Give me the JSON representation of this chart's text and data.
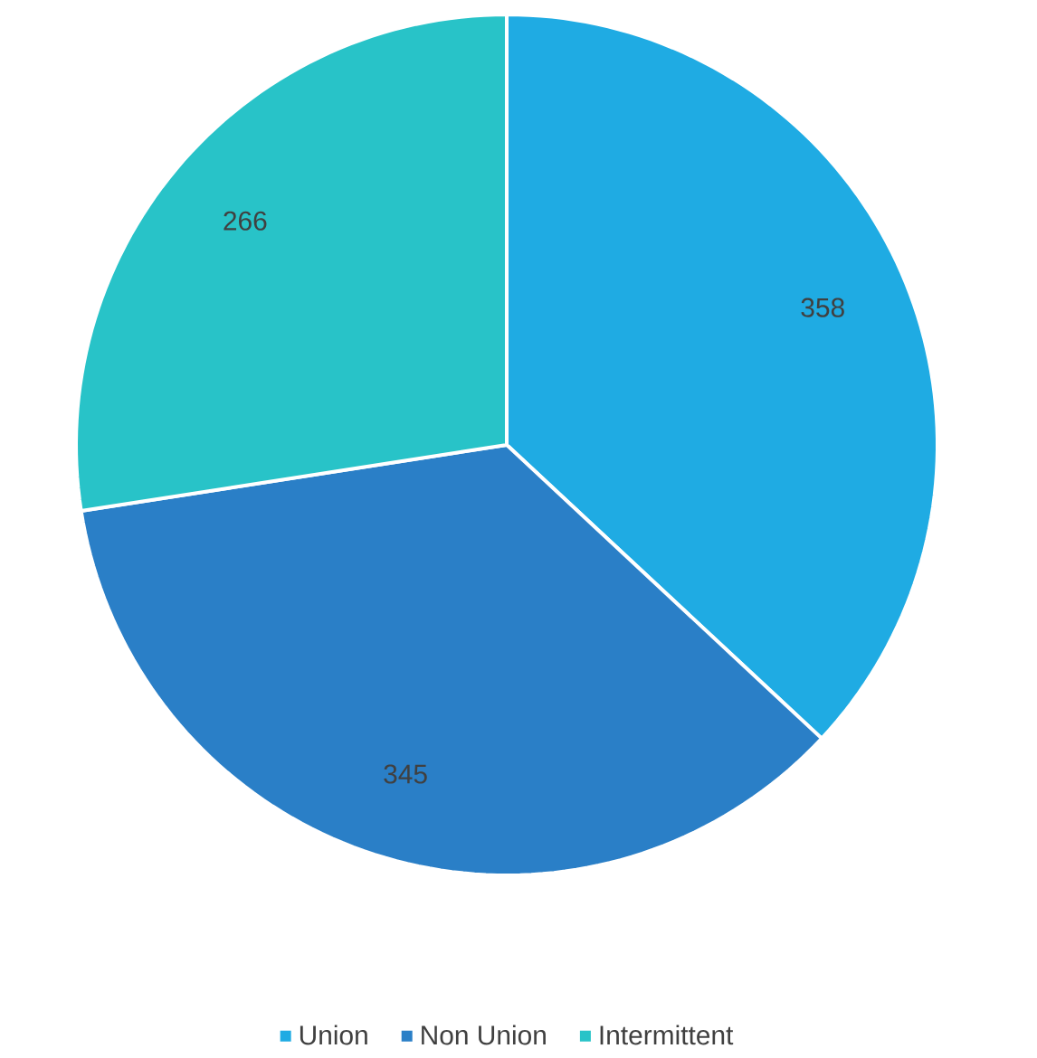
{
  "chart_data": {
    "type": "pie",
    "categories": [
      "Union",
      "Non Union",
      "Intermittent"
    ],
    "values": [
      358,
      345,
      266
    ],
    "colors": [
      "#1fabe3",
      "#2a7fc7",
      "#28c3c8"
    ],
    "data_labels": true,
    "legend": "bottom"
  }
}
